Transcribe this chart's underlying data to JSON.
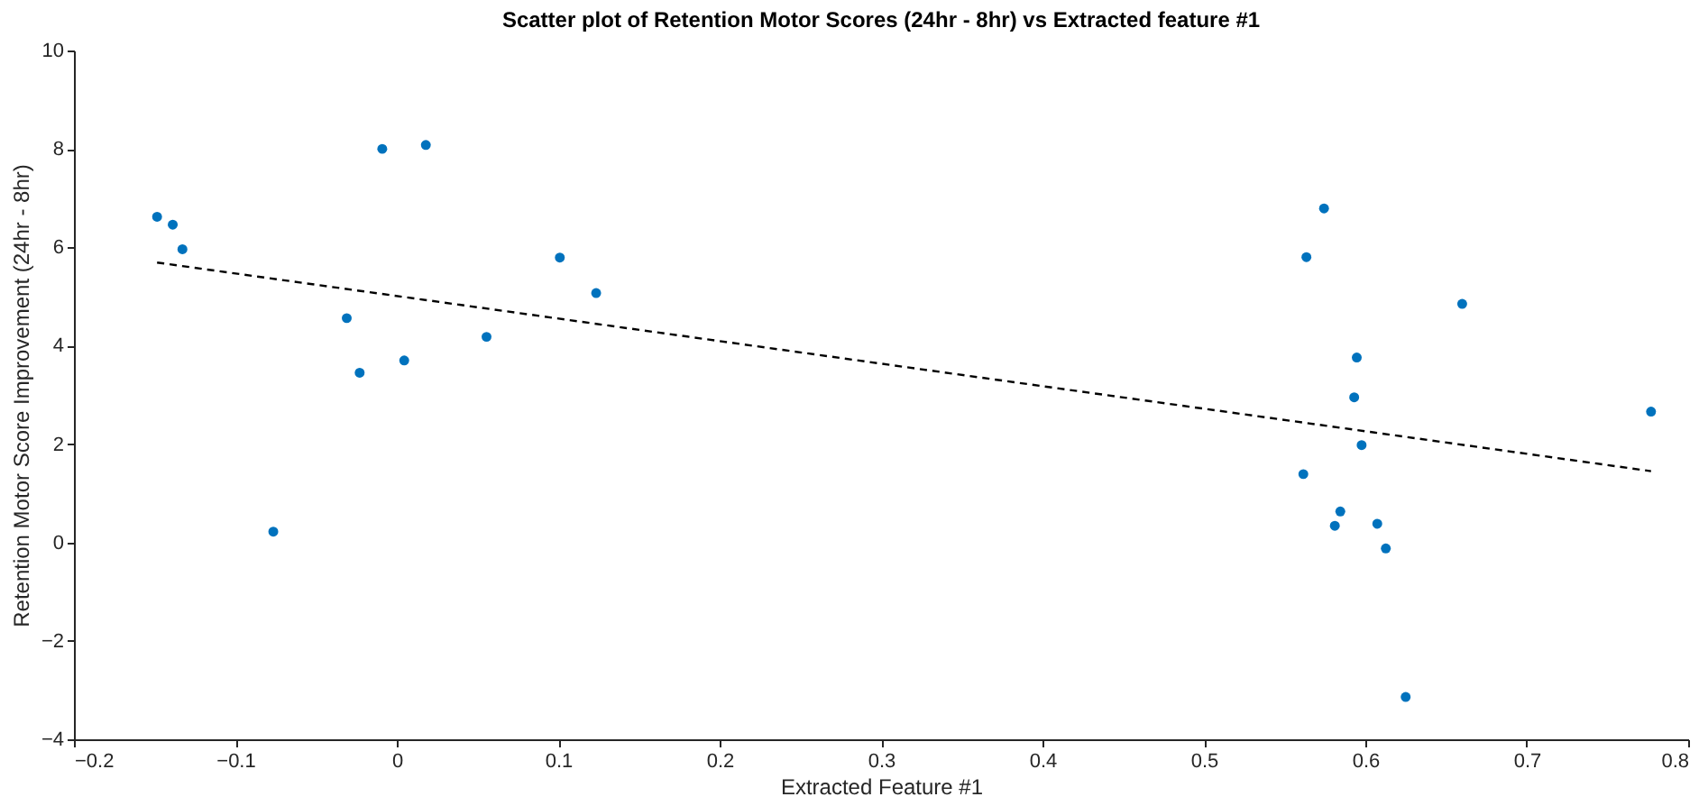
{
  "chart_data": {
    "type": "scatter",
    "title": "Scatter plot of Retention Motor Scores (24hr - 8hr) vs Extracted feature #1",
    "xlabel": "Extracted Feature #1",
    "ylabel": "Retention Motor Score Improvement (24hr - 8hr)",
    "xlim": [
      -0.2,
      0.8
    ],
    "xticks": [
      -0.2,
      -0.1,
      0,
      0.1,
      0.2,
      0.3,
      0.4,
      0.5,
      0.6,
      0.7,
      0.8
    ],
    "ylim": [
      -4,
      10
    ],
    "yticks": [
      -4,
      -2,
      0,
      2,
      4,
      6,
      8,
      10
    ],
    "grid": false,
    "marker": "circle",
    "series": [
      {
        "color": "#0072bd",
        "x": [
          -0.1485,
          -0.1388,
          -0.1328,
          -0.0765,
          -0.031,
          -0.023,
          -0.009,
          0.0046,
          0.018,
          0.0556,
          0.101,
          0.1235,
          0.5744,
          0.5635,
          0.5947,
          0.5931,
          0.5977,
          0.5616,
          0.5845,
          0.5811,
          0.6074,
          0.6127,
          0.625,
          0.66,
          0.777
        ],
        "values": [
          6.62,
          6.46,
          5.96,
          0.22,
          4.56,
          3.45,
          8.0,
          3.7,
          8.08,
          4.18,
          5.79,
          5.07,
          6.79,
          5.8,
          3.76,
          2.95,
          1.98,
          1.39,
          0.63,
          0.34,
          0.38,
          -0.12,
          -3.14,
          4.85,
          2.66
        ]
      },
      {
        "type": "line",
        "color": "#000000",
        "line_style": "dashed",
        "marker": "none",
        "x": [
          -0.1485,
          0.777
        ],
        "values": [
          5.69,
          1.45
        ]
      }
    ]
  }
}
